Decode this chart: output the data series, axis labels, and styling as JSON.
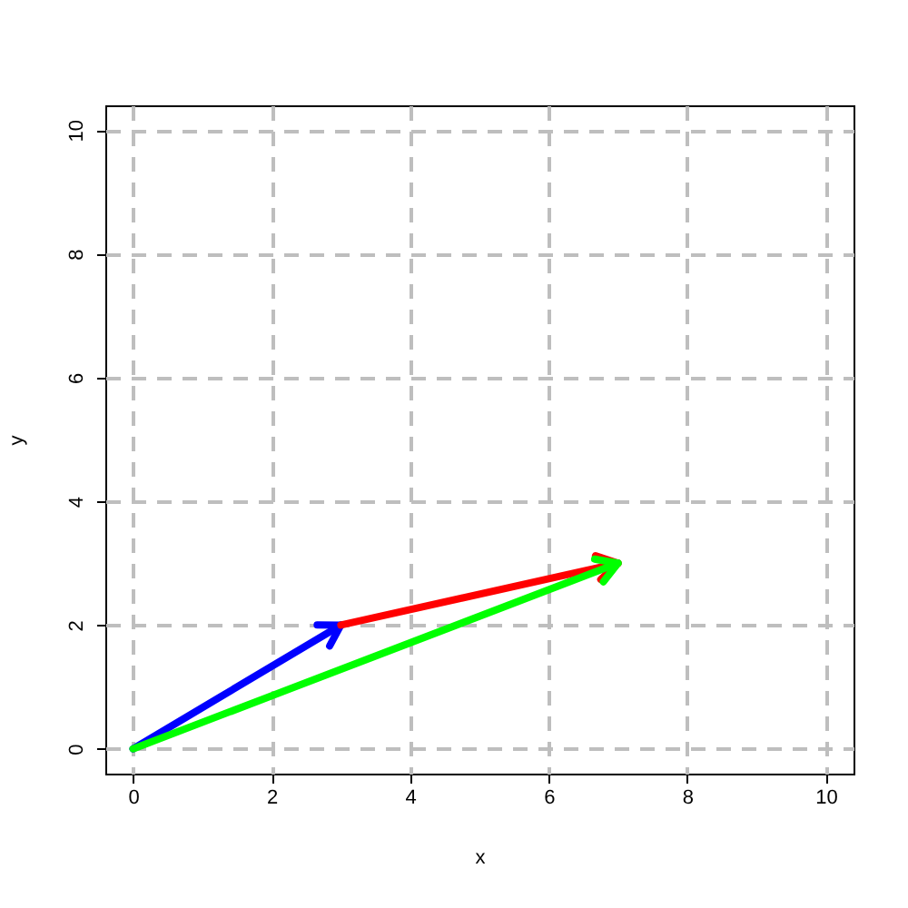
{
  "chart_data": {
    "type": "line",
    "xlabel": "x",
    "ylabel": "y",
    "xlim": [
      -0.4,
      10.4
    ],
    "ylim": [
      -0.4,
      10.4
    ],
    "xticks": [
      0,
      2,
      4,
      6,
      8,
      10
    ],
    "yticks": [
      0,
      2,
      4,
      6,
      8,
      10
    ],
    "grid": true,
    "marker": "none",
    "line_style": "solid",
    "series": [
      {
        "color": "#0000ff",
        "x": [
          0,
          3
        ],
        "values": [
          0,
          2
        ]
      },
      {
        "color": "#ff0000",
        "x": [
          3,
          7
        ],
        "values": [
          2,
          3
        ]
      },
      {
        "color": "#00ff00",
        "x": [
          0,
          7
        ],
        "values": [
          0,
          3
        ]
      }
    ]
  }
}
